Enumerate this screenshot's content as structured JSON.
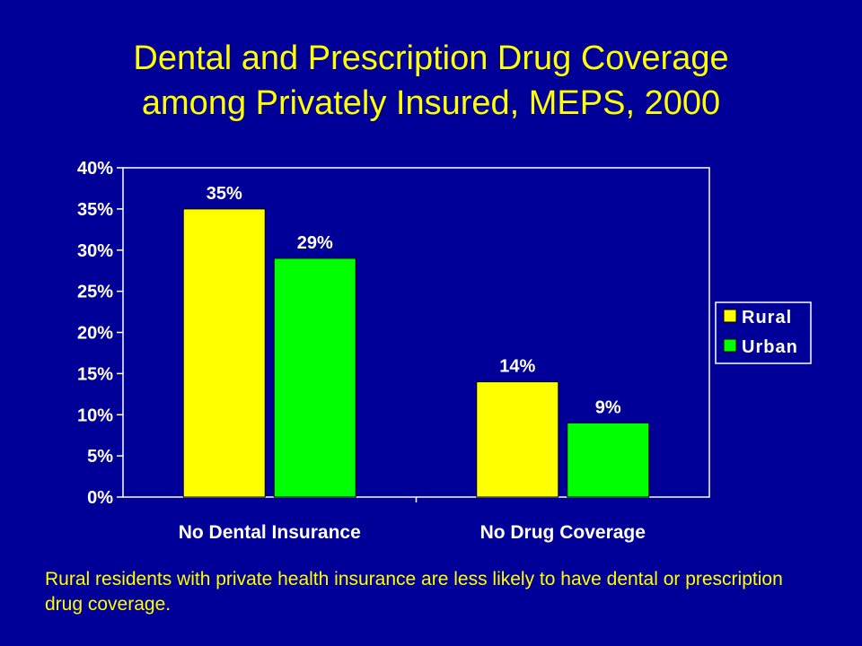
{
  "title_line1": "Dental and Prescription Drug Coverage",
  "title_line2": "among Privately Insured, MEPS, 2000",
  "footnote": "Rural residents with private health insurance are less likely to have dental or prescription drug coverage.",
  "colors": {
    "background": "#000099",
    "title": "#ffff00",
    "rural": "#ffff00",
    "urban": "#00ff00",
    "text": "#ffffff"
  },
  "chart_data": {
    "type": "bar",
    "title": "Dental and Prescription Drug Coverage among Privately Insured, MEPS, 2000",
    "xlabel": "",
    "ylabel": "",
    "categories": [
      "No Dental Insurance",
      "No Drug Coverage"
    ],
    "series": [
      {
        "name": "Rural",
        "values": [
          35,
          14
        ],
        "labels": [
          "35%",
          "14%"
        ],
        "color": "#ffff00"
      },
      {
        "name": "Urban",
        "values": [
          29,
          9
        ],
        "labels": [
          "29%",
          "9%"
        ],
        "color": "#00ff00"
      }
    ],
    "ylim": [
      0,
      40
    ],
    "yticks": [
      {
        "value": 0,
        "label": "0%"
      },
      {
        "value": 5,
        "label": "5%"
      },
      {
        "value": 10,
        "label": "10%"
      },
      {
        "value": 15,
        "label": "15%"
      },
      {
        "value": 20,
        "label": "20%"
      },
      {
        "value": 25,
        "label": "25%"
      },
      {
        "value": 30,
        "label": "30%"
      },
      {
        "value": 35,
        "label": "35%"
      },
      {
        "value": 40,
        "label": "40%"
      }
    ],
    "grid": false,
    "legend_position": "right"
  }
}
